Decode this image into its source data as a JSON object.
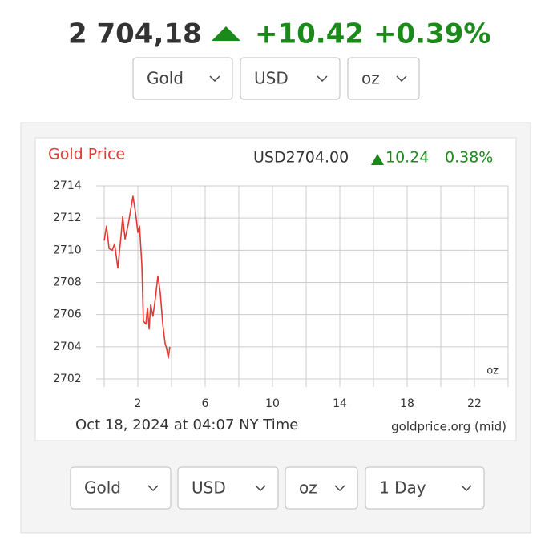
{
  "header": {
    "price": "2 704,18",
    "change": "+10.42",
    "change_pct": "+0.39%"
  },
  "top_selects": [
    "Gold",
    "USD",
    "oz"
  ],
  "bottom_selects": [
    "Gold",
    "USD",
    "oz",
    "1 Day"
  ],
  "chart_data": {
    "type": "line",
    "title": "Gold Price",
    "quote": "USD2704.00",
    "change": "10.24",
    "change_pct": "0.38%",
    "unit_label": "oz",
    "caption": "Oct 18, 2024 at 04:07 NY Time",
    "source": "goldprice.org (mid)",
    "color": "#e53935",
    "x": [
      0,
      0.14,
      0.29,
      0.48,
      0.62,
      0.81,
      1.0,
      1.1,
      1.24,
      1.43,
      1.57,
      1.71,
      1.86,
      2.0,
      2.1,
      2.24,
      2.33,
      2.48,
      2.57,
      2.67,
      2.76,
      2.9,
      3.05,
      3.19,
      3.33,
      3.48,
      3.62,
      3.71,
      3.81,
      3.9
    ],
    "values": [
      2710.6,
      2711.5,
      2710.1,
      2710.0,
      2710.4,
      2708.9,
      2710.9,
      2712.1,
      2710.7,
      2711.6,
      2712.5,
      2713.35,
      2712.35,
      2711.1,
      2711.5,
      2709.1,
      2705.6,
      2705.4,
      2706.4,
      2705.1,
      2706.6,
      2705.9,
      2707.1,
      2708.4,
      2707.4,
      2705.4,
      2704.2,
      2703.9,
      2703.3,
      2704.0
    ],
    "xlim": [
      0,
      24
    ],
    "xticks": [
      2,
      6,
      10,
      14,
      18,
      22
    ],
    "xgrid": [
      0,
      2,
      4,
      6,
      8,
      10,
      12,
      14,
      16,
      18,
      20,
      22,
      24
    ],
    "ylim": [
      2702,
      2714
    ],
    "yticks": [
      2702,
      2704,
      2706,
      2708,
      2710,
      2712,
      2714
    ],
    "grid": true
  }
}
